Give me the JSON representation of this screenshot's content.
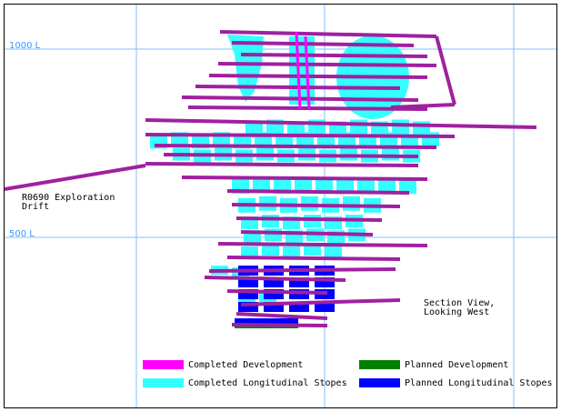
{
  "levels": [
    {
      "label": "1000 L"
    },
    {
      "label": "500 L"
    }
  ],
  "annotations": {
    "drift": [
      "R0690 Exploration",
      "Drift"
    ],
    "view": [
      "Section View,",
      "Looking West"
    ]
  },
  "legend": [
    {
      "label": "Completed Development",
      "color": "#ff00ff"
    },
    {
      "label": "Completed Longitudinal Stopes",
      "color": "#33ffff"
    },
    {
      "label": "Planned Development",
      "color": "#008000"
    },
    {
      "label": "Planned Longitudinal Stopes",
      "color": "#0000ff"
    }
  ]
}
